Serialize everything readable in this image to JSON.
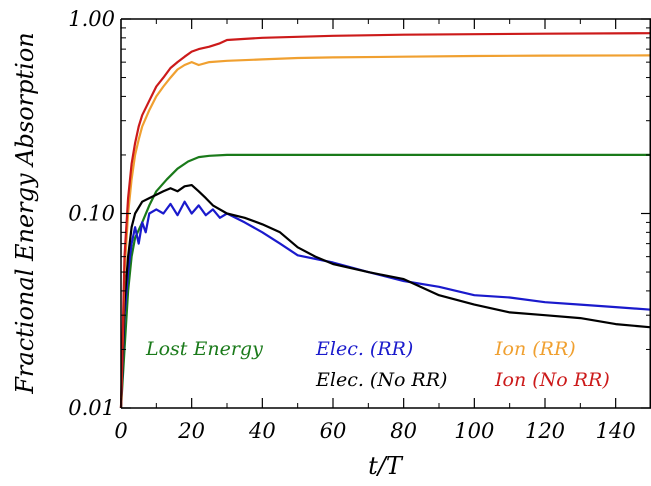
{
  "chart_data": {
    "type": "line",
    "title": "",
    "xlabel": "t/T",
    "ylabel": "Fractional Energy Absorption",
    "xlim": [
      0,
      150
    ],
    "ylim": [
      0.01,
      1.0
    ],
    "yscale": "log",
    "grid": false,
    "x_ticks": [
      0,
      20,
      40,
      60,
      80,
      100,
      120,
      140
    ],
    "x_tick_labels": [
      "0",
      "20",
      "40",
      "60",
      "80",
      "100",
      "120",
      "140"
    ],
    "y_ticks": [
      0.01,
      0.1,
      1.0
    ],
    "y_tick_labels": [
      "0.01",
      "0.10",
      "1.00"
    ],
    "legend_placement": "lower-center",
    "series": [
      {
        "name": "Lost Energy",
        "color": "#1a7a1a",
        "x": [
          0,
          1,
          2,
          3,
          4,
          6,
          8,
          10,
          13,
          16,
          19,
          22,
          25,
          30,
          40,
          60,
          80,
          100,
          120,
          150
        ],
        "y": [
          0.01,
          0.02,
          0.04,
          0.06,
          0.075,
          0.09,
          0.11,
          0.13,
          0.15,
          0.17,
          0.185,
          0.195,
          0.198,
          0.2,
          0.2,
          0.2,
          0.2,
          0.2,
          0.2,
          0.2
        ]
      },
      {
        "name": "Elec. (RR)",
        "color": "#1a1acc",
        "x": [
          0,
          1,
          2,
          3,
          4,
          5,
          6,
          7,
          8,
          10,
          12,
          14,
          16,
          18,
          20,
          22,
          24,
          26,
          28,
          30,
          35,
          40,
          45,
          50,
          60,
          70,
          80,
          90,
          100,
          110,
          120,
          130,
          140,
          150
        ],
        "y": [
          0.01,
          0.03,
          0.05,
          0.07,
          0.085,
          0.07,
          0.09,
          0.08,
          0.1,
          0.105,
          0.1,
          0.112,
          0.098,
          0.115,
          0.1,
          0.11,
          0.098,
          0.105,
          0.095,
          0.1,
          0.09,
          0.08,
          0.07,
          0.061,
          0.056,
          0.05,
          0.045,
          0.042,
          0.038,
          0.037,
          0.035,
          0.034,
          0.033,
          0.032
        ]
      },
      {
        "name": "Elec. (No RR)",
        "color": "#000000",
        "x": [
          0,
          1,
          2,
          3,
          4,
          6,
          8,
          10,
          12,
          14,
          16,
          18,
          20,
          22,
          24,
          26,
          30,
          35,
          40,
          45,
          50,
          55,
          60,
          70,
          80,
          90,
          100,
          110,
          120,
          130,
          140,
          150
        ],
        "y": [
          0.01,
          0.035,
          0.06,
          0.085,
          0.1,
          0.115,
          0.12,
          0.125,
          0.13,
          0.135,
          0.13,
          0.138,
          0.14,
          0.13,
          0.12,
          0.11,
          0.1,
          0.095,
          0.088,
          0.08,
          0.067,
          0.06,
          0.055,
          0.05,
          0.046,
          0.038,
          0.034,
          0.031,
          0.03,
          0.029,
          0.027,
          0.026
        ]
      },
      {
        "name": "Ion (RR)",
        "color": "#f0a030",
        "x": [
          0,
          1,
          2,
          3,
          4,
          5,
          6,
          8,
          10,
          12,
          14,
          16,
          18,
          20,
          22,
          25,
          30,
          40,
          50,
          60,
          80,
          100,
          120,
          150
        ],
        "y": [
          0.01,
          0.05,
          0.1,
          0.15,
          0.2,
          0.24,
          0.28,
          0.34,
          0.4,
          0.45,
          0.5,
          0.55,
          0.58,
          0.6,
          0.58,
          0.6,
          0.61,
          0.62,
          0.63,
          0.635,
          0.64,
          0.645,
          0.648,
          0.65
        ]
      },
      {
        "name": "Ion (No RR)",
        "color": "#cc1a1a",
        "x": [
          0,
          1,
          2,
          3,
          4,
          5,
          6,
          8,
          10,
          12,
          14,
          16,
          18,
          20,
          22,
          25,
          28,
          30,
          35,
          40,
          50,
          60,
          80,
          100,
          120,
          150
        ],
        "y": [
          0.01,
          0.06,
          0.12,
          0.18,
          0.23,
          0.28,
          0.32,
          0.38,
          0.45,
          0.5,
          0.56,
          0.6,
          0.64,
          0.68,
          0.7,
          0.72,
          0.75,
          0.78,
          0.79,
          0.8,
          0.81,
          0.82,
          0.83,
          0.835,
          0.84,
          0.845
        ]
      }
    ],
    "legend": [
      {
        "label": "Lost Energy",
        "color": "#1a7a1a"
      },
      {
        "label": "Elec. (RR)",
        "color": "#1a1acc"
      },
      {
        "label": "Ion (RR)",
        "color": "#f0a030"
      },
      {
        "label": "Elec. (No RR)",
        "color": "#000000"
      },
      {
        "label": "Ion (No RR)",
        "color": "#cc1a1a"
      }
    ]
  }
}
